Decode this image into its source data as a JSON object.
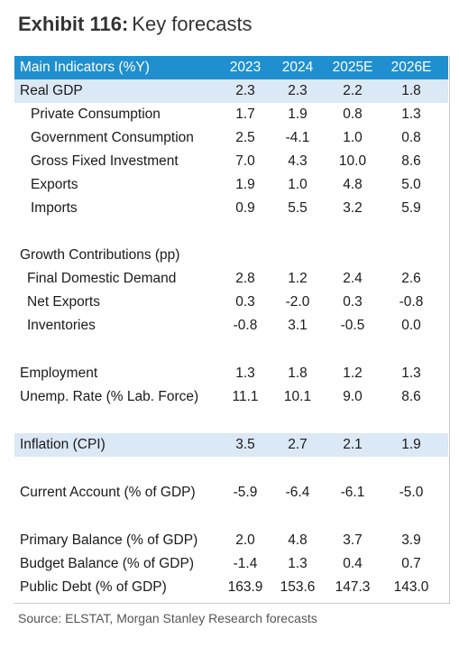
{
  "title": {
    "bold": "Exhibit 116:",
    "light": "Key forecasts"
  },
  "chart_data": {
    "type": "table",
    "columns": [
      "Main Indicators (%Y)",
      "2023",
      "2024",
      "2025E",
      "2026E"
    ],
    "rows": [
      {
        "label": "Real GDP",
        "values": [
          "2.3",
          "2.3",
          "2.2",
          "1.8"
        ],
        "highlight": true
      },
      {
        "label": "Private Consumption",
        "values": [
          "1.7",
          "1.9",
          "0.8",
          "1.3"
        ]
      },
      {
        "label": "Government Consumption",
        "values": [
          "2.5",
          "-4.1",
          "1.0",
          "0.8"
        ]
      },
      {
        "label": "Gross Fixed Investment",
        "values": [
          "7.0",
          "4.3",
          "10.0",
          "8.6"
        ]
      },
      {
        "label": "Exports",
        "values": [
          "1.9",
          "1.0",
          "4.8",
          "5.0"
        ]
      },
      {
        "label": "Imports",
        "values": [
          "0.9",
          "5.5",
          "3.2",
          "5.9"
        ]
      },
      {
        "label": "Growth Contributions (pp)",
        "values": [
          "",
          "",
          "",
          ""
        ]
      },
      {
        "label": "Final Domestic Demand",
        "values": [
          "2.8",
          "1.2",
          "2.4",
          "2.6"
        ]
      },
      {
        "label": "Net Exports",
        "values": [
          "0.3",
          "-2.0",
          "0.3",
          "-0.8"
        ]
      },
      {
        "label": "Inventories",
        "values": [
          "-0.8",
          "3.1",
          "-0.5",
          "0.0"
        ]
      },
      {
        "label": "Employment",
        "values": [
          "1.3",
          "1.8",
          "1.2",
          "1.3"
        ]
      },
      {
        "label": "Unemp. Rate (% Lab. Force)",
        "values": [
          "11.1",
          "10.1",
          "9.0",
          "8.6"
        ]
      },
      {
        "label": "Inflation (CPI)",
        "values": [
          "3.5",
          "2.7",
          "2.1",
          "1.9"
        ],
        "highlight": true
      },
      {
        "label": "Current Account (% of GDP)",
        "values": [
          "-5.9",
          "-6.4",
          "-6.1",
          "-5.0"
        ]
      },
      {
        "label": "Primary Balance (% of GDP)",
        "values": [
          "2.0",
          "4.8",
          "3.7",
          "3.9"
        ]
      },
      {
        "label": "Budget Balance (% of GDP)",
        "values": [
          "-1.4",
          "1.3",
          "0.4",
          "0.7"
        ]
      },
      {
        "label": "Public Debt (% of GDP)",
        "values": [
          "163.9",
          "153.6",
          "147.3",
          "143.0"
        ]
      }
    ]
  },
  "source": "Source: ELSTAT, Morgan Stanley Research forecasts",
  "colors": {
    "header": "#1f8fd0",
    "highlight": "#dbe8f5"
  }
}
